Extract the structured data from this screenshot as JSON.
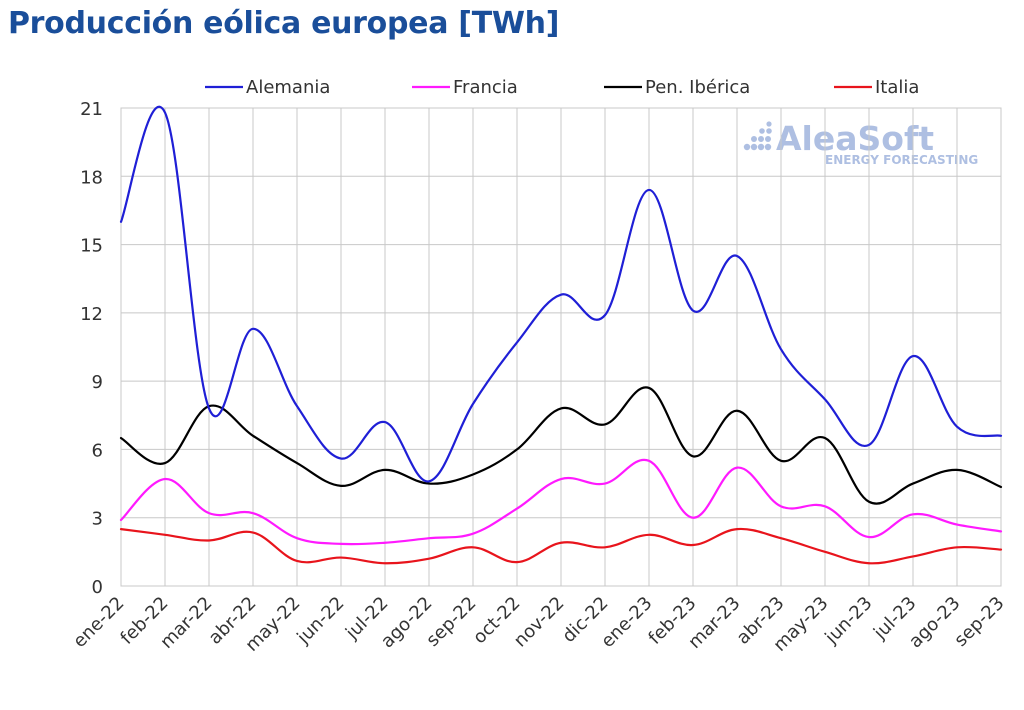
{
  "title": "Producción eólica europea [TWh]",
  "watermark": {
    "brand": "AleaSoft",
    "tagline": "ENERGY FORECASTING",
    "color": "#aebfe2"
  },
  "chart_data": {
    "type": "line",
    "title": "Producción eólica europea [TWh]",
    "xlabel": "",
    "ylabel": "",
    "categories": [
      "ene-22",
      "feb-22",
      "mar-22",
      "abr-22",
      "may-22",
      "jun-22",
      "jul-22",
      "ago-22",
      "sep-22",
      "oct-22",
      "nov-22",
      "dic-22",
      "ene-23",
      "feb-23",
      "mar-23",
      "abr-23",
      "may-23",
      "jun-23",
      "jul-23",
      "ago-23",
      "sep-23"
    ],
    "ylim": [
      0,
      21
    ],
    "yticks": [
      0,
      3,
      6,
      9,
      12,
      15,
      18,
      21
    ],
    "grid": true,
    "legend_position": "top",
    "series": [
      {
        "name": "Alemania",
        "color": "#1f1fd6",
        "values": [
          16.0,
          20.8,
          7.8,
          11.3,
          7.9,
          5.6,
          7.2,
          4.6,
          8.0,
          10.7,
          12.8,
          11.9,
          17.4,
          12.1,
          14.5,
          10.4,
          8.2,
          6.2,
          10.1,
          7.0,
          6.6
        ]
      },
      {
        "name": "Francia",
        "color": "#ff1aff",
        "values": [
          2.9,
          4.7,
          3.2,
          3.2,
          2.1,
          1.85,
          1.9,
          2.1,
          2.3,
          3.4,
          4.7,
          4.5,
          5.5,
          3.0,
          5.2,
          3.5,
          3.5,
          2.15,
          3.15,
          2.7,
          2.4
        ]
      },
      {
        "name": "Pen. Ibérica",
        "color": "#000000",
        "values": [
          6.5,
          5.4,
          7.9,
          6.6,
          5.4,
          4.4,
          5.1,
          4.5,
          4.9,
          6.0,
          7.8,
          7.1,
          8.7,
          5.7,
          7.7,
          5.5,
          6.5,
          3.7,
          4.5,
          5.1,
          4.35
        ]
      },
      {
        "name": "Italia",
        "color": "#e8141c",
        "values": [
          2.5,
          2.25,
          2.0,
          2.35,
          1.1,
          1.25,
          1.0,
          1.2,
          1.7,
          1.05,
          1.9,
          1.7,
          2.25,
          1.8,
          2.5,
          2.1,
          1.5,
          1.0,
          1.3,
          1.7,
          1.6
        ]
      }
    ]
  }
}
